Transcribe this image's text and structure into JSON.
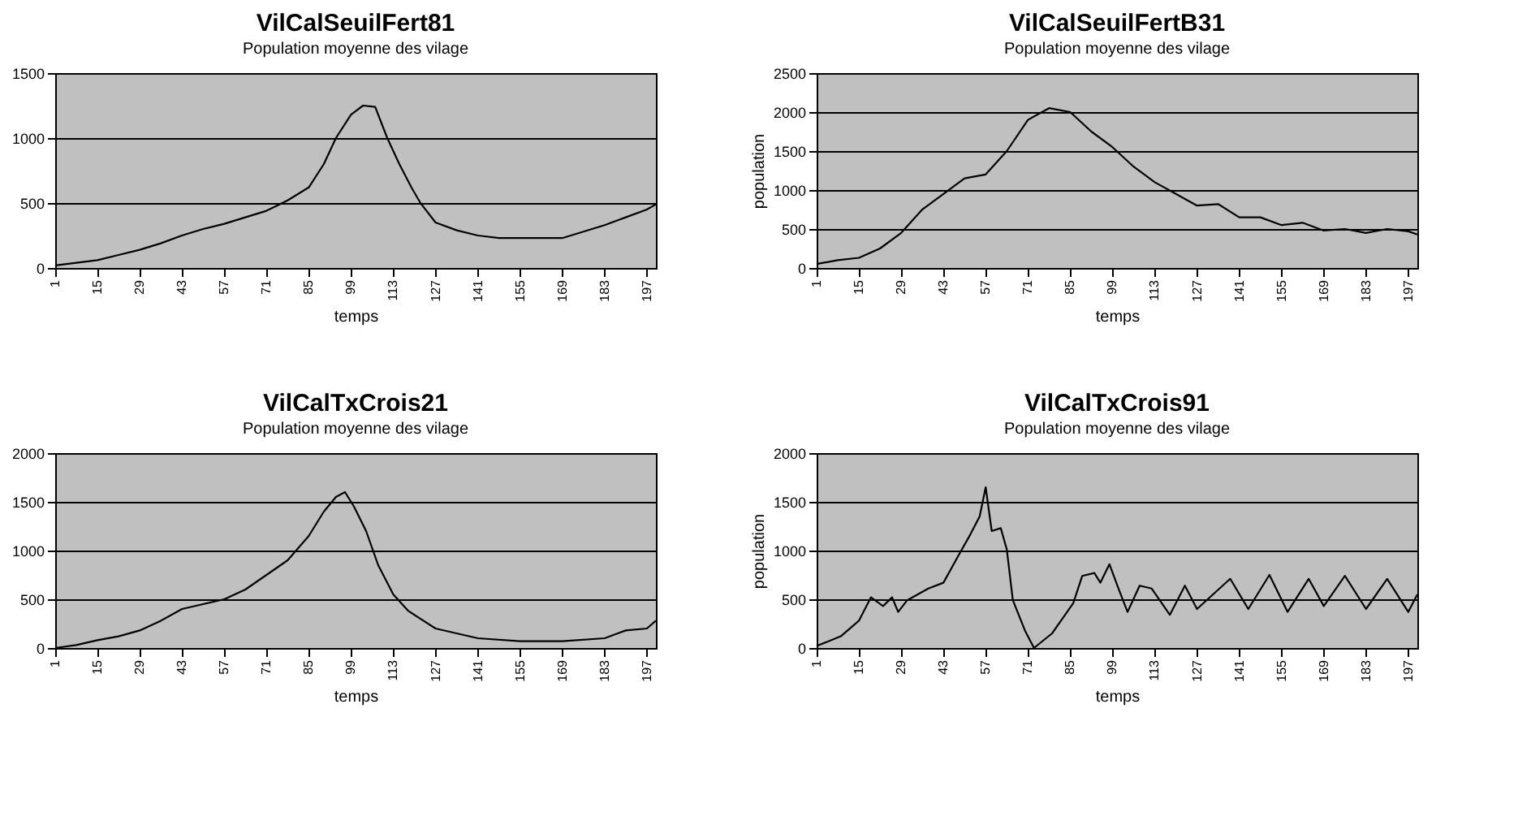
{
  "chart_data": [
    {
      "type": "line",
      "title": "VilCalSeuilFert81",
      "subtitle": "Population moyenne des vilage",
      "xlabel": "temps",
      "grid": "y",
      "xlim": [
        1,
        200
      ],
      "xticks": [
        1,
        15,
        29,
        43,
        57,
        71,
        85,
        99,
        113,
        127,
        141,
        155,
        169,
        183,
        197
      ],
      "ylim": [
        0,
        1500
      ],
      "yticks": [
        0,
        500,
        1000,
        1500
      ],
      "x": [
        1,
        8,
        15,
        22,
        29,
        36,
        43,
        50,
        57,
        64,
        71,
        78,
        85,
        90,
        94,
        99,
        103,
        107,
        111,
        115,
        119,
        122,
        127,
        134,
        141,
        148,
        155,
        162,
        169,
        176,
        183,
        190,
        197,
        200
      ],
      "series": [
        {
          "color": "#000000",
          "values": [
            20,
            40,
            60,
            100,
            140,
            190,
            250,
            300,
            340,
            390,
            440,
            520,
            620,
            800,
            1000,
            1180,
            1250,
            1240,
            1000,
            800,
            620,
            500,
            350,
            290,
            250,
            230,
            230,
            230,
            230,
            280,
            330,
            390,
            450,
            490
          ]
        }
      ]
    },
    {
      "type": "line",
      "title": "VilCalSeuilFertB31",
      "subtitle": "Population moyenne des vilage",
      "xlabel": "temps",
      "ylabel": "population",
      "grid": "y",
      "xlim": [
        1,
        200
      ],
      "xticks": [
        1,
        15,
        29,
        43,
        57,
        71,
        85,
        99,
        113,
        127,
        141,
        155,
        169,
        183,
        197
      ],
      "ylim": [
        0,
        2500
      ],
      "yticks": [
        0,
        500,
        1000,
        1500,
        2000,
        2500
      ],
      "x": [
        1,
        8,
        15,
        22,
        29,
        36,
        43,
        50,
        57,
        64,
        71,
        78,
        85,
        92,
        99,
        106,
        113,
        120,
        127,
        134,
        141,
        148,
        155,
        162,
        169,
        176,
        183,
        190,
        197,
        200
      ],
      "series": [
        {
          "color": "#000000",
          "values": [
            50,
            100,
            130,
            250,
            450,
            750,
            950,
            1150,
            1200,
            1500,
            1900,
            2050,
            2000,
            1750,
            1550,
            1300,
            1100,
            950,
            800,
            820,
            650,
            650,
            550,
            580,
            480,
            500,
            450,
            500,
            470,
            430
          ]
        }
      ]
    },
    {
      "type": "line",
      "title": "VilCalTxCrois21",
      "subtitle": "Population moyenne des vilage",
      "xlabel": "temps",
      "grid": "y",
      "xlim": [
        1,
        200
      ],
      "xticks": [
        1,
        15,
        29,
        43,
        57,
        71,
        85,
        99,
        113,
        127,
        141,
        155,
        169,
        183,
        197
      ],
      "ylim": [
        0,
        2000
      ],
      "yticks": [
        0,
        500,
        1000,
        1500,
        2000
      ],
      "x": [
        1,
        8,
        15,
        22,
        29,
        36,
        43,
        50,
        57,
        64,
        71,
        78,
        85,
        90,
        94,
        97,
        100,
        104,
        108,
        113,
        118,
        127,
        134,
        141,
        155,
        169,
        183,
        190,
        197,
        200
      ],
      "series": [
        {
          "color": "#000000",
          "values": [
            0,
            30,
            80,
            120,
            180,
            280,
            400,
            450,
            500,
            600,
            750,
            900,
            1150,
            1400,
            1550,
            1600,
            1450,
            1200,
            850,
            550,
            380,
            200,
            150,
            100,
            70,
            70,
            100,
            180,
            200,
            280
          ]
        }
      ]
    },
    {
      "type": "line",
      "title": "VilCalTxCrois91",
      "subtitle": "Population moyenne des vilage",
      "xlabel": "temps",
      "ylabel": "population",
      "grid": "y",
      "xlim": [
        1,
        200
      ],
      "xticks": [
        1,
        15,
        29,
        43,
        57,
        71,
        85,
        99,
        113,
        127,
        141,
        155,
        169,
        183,
        197
      ],
      "ylim": [
        0,
        2000
      ],
      "yticks": [
        0,
        500,
        1000,
        1500,
        2000
      ],
      "x": [
        1,
        9,
        15,
        19,
        23,
        26,
        28,
        31,
        38,
        43,
        48,
        52,
        55,
        57,
        59,
        62,
        64,
        66,
        70,
        73,
        79,
        86,
        89,
        93,
        95,
        98,
        101,
        104,
        108,
        112,
        118,
        123,
        127,
        138,
        144,
        151,
        157,
        164,
        169,
        176,
        183,
        190,
        197,
        200
      ],
      "series": [
        {
          "color": "#000000",
          "values": [
            20,
            120,
            280,
            520,
            430,
            520,
            370,
            490,
            610,
            670,
            950,
            1170,
            1350,
            1650,
            1200,
            1230,
            1010,
            490,
            180,
            0,
            150,
            460,
            740,
            770,
            670,
            860,
            610,
            370,
            640,
            610,
            340,
            640,
            400,
            710,
            400,
            750,
            370,
            710,
            430,
            740,
            400,
            710,
            370,
            550
          ]
        }
      ]
    }
  ]
}
